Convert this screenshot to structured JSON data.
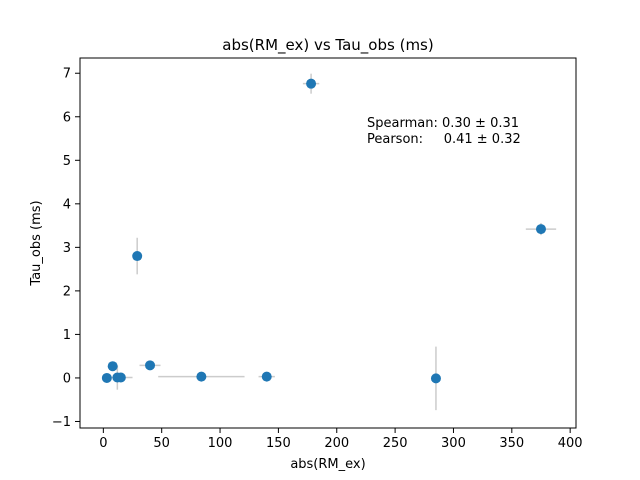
{
  "chart_data": {
    "type": "scatter",
    "title": "abs(RM_ex) vs Tau_obs (ms)",
    "xlabel": "abs(RM_ex)",
    "ylabel": "Tau_obs (ms)",
    "xlim": [
      -20,
      405
    ],
    "ylim": [
      -1.15,
      7.35
    ],
    "xticks": [
      0,
      50,
      100,
      150,
      200,
      250,
      300,
      350,
      400
    ],
    "yticks": [
      -1,
      0,
      1,
      2,
      3,
      4,
      5,
      6,
      7
    ],
    "grid": false,
    "marker_color": "#1f77b4",
    "errorbar_color": "#cccccc",
    "points": [
      {
        "x": 3,
        "y": 0.0,
        "xerr": 0,
        "yerr": 0
      },
      {
        "x": 8,
        "y": 0.27,
        "xerr": 0,
        "yerr": 0
      },
      {
        "x": 12,
        "y": 0.01,
        "xerr": 0,
        "yerr": 0.28
      },
      {
        "x": 15,
        "y": 0.01,
        "xerr": 10,
        "yerr": 0
      },
      {
        "x": 29,
        "y": 2.8,
        "xerr": 0,
        "yerr": 0.42
      },
      {
        "x": 40,
        "y": 0.29,
        "xerr": 9,
        "yerr": 0
      },
      {
        "x": 84,
        "y": 0.03,
        "xerr": 37,
        "yerr": 0
      },
      {
        "x": 140,
        "y": 0.03,
        "xerr": 7,
        "yerr": 0
      },
      {
        "x": 178,
        "y": 6.76,
        "xerr": 7,
        "yerr": 0.23
      },
      {
        "x": 285,
        "y": -0.01,
        "xerr": 0,
        "yerr": 0.73
      },
      {
        "x": 375,
        "y": 3.42,
        "xerr": 13,
        "yerr": 0.14
      }
    ],
    "annotations": [
      "Spearman: 0.30 ± 0.31",
      "Pearson:     0.41 ± 0.32"
    ]
  }
}
